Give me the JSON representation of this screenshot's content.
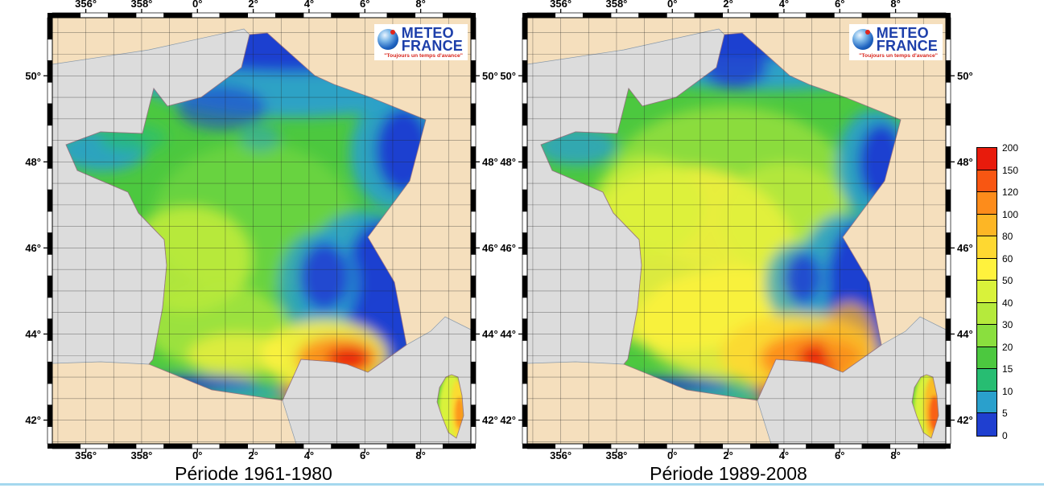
{
  "maps": [
    {
      "id": "map-1961-1980",
      "caption": "Période 1961-1980",
      "logo": {
        "line1": "METEO",
        "line2": "FRANCE",
        "tagline": "\"Toujours un temps d'avance\""
      }
    },
    {
      "id": "map-1989-2008",
      "caption": "Période 1989-2008",
      "logo": {
        "line1": "METEO",
        "line2": "FRANCE",
        "tagline": "\"Toujours un temps d'avance\""
      }
    }
  ],
  "axes": {
    "lon_ticks": [
      {
        "label": "356°",
        "deg": 356
      },
      {
        "label": "358°",
        "deg": 358
      },
      {
        "label": "0°",
        "deg": 0
      },
      {
        "label": "2°",
        "deg": 2
      },
      {
        "label": "4°",
        "deg": 4
      },
      {
        "label": "6°",
        "deg": 6
      },
      {
        "label": "8°",
        "deg": 8
      }
    ],
    "lat_ticks": [
      {
        "label": "42°",
        "deg": 42
      },
      {
        "label": "44°",
        "deg": 44
      },
      {
        "label": "46°",
        "deg": 46
      },
      {
        "label": "48°",
        "deg": 48
      },
      {
        "label": "50°",
        "deg": 50
      }
    ]
  },
  "colorbar": {
    "tick_labels_top_to_bottom": [
      "200",
      "150",
      "120",
      "100",
      "80",
      "60",
      "50",
      "40",
      "30",
      "20",
      "15",
      "10",
      "5",
      "0"
    ],
    "segment_colors_top_to_bottom": [
      "#e81b0c",
      "#f85612",
      "#fd8c1b",
      "#fdb625",
      "#fed831",
      "#fff23d",
      "#d9f23a",
      "#b5ea3c",
      "#8adf3e",
      "#4cc83f",
      "#27bd72",
      "#2aa0cc",
      "#1f3fd0"
    ]
  },
  "palette": {
    "sea": "#dcdcdc",
    "land": "#f5dfbd",
    "grid": "#222222",
    "coast": "#8899aa",
    "france_border": "#9a7080",
    "footer_line": "#a5d8ee",
    "logo_blue": "#1d3faa",
    "logo_red": "#d8251c"
  }
}
